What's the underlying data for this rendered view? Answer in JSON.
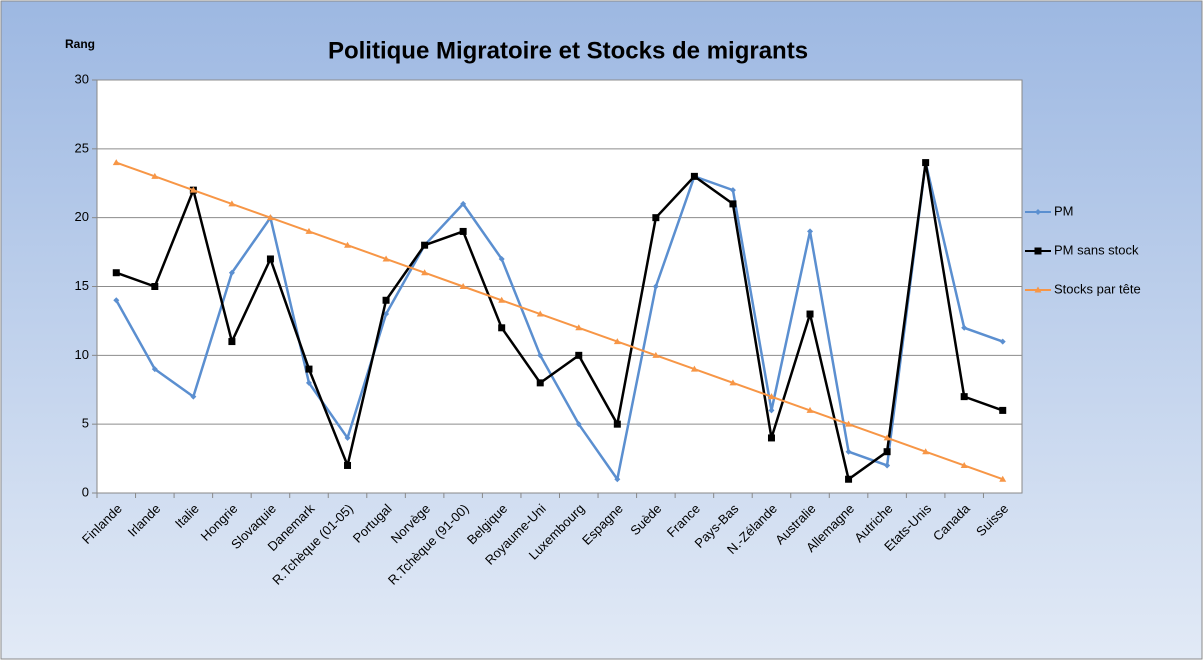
{
  "chart_data": {
    "type": "line",
    "title": "Politique Migratoire et Stocks de migrants",
    "y_label": "Rang",
    "categories": [
      "Finlande",
      "Irlande",
      "Italie",
      "Hongrie",
      "Slovaquie",
      "Danemark",
      "R.Tchèque (01-05)",
      "Portugal",
      "Norvège",
      "R.Tchèque (91-00)",
      "Belgique",
      "Royaume-Uni",
      "Luxembourg",
      "Espagne",
      "Suède",
      "France",
      "Pays-Bas",
      "N.-Zélande",
      "Australie",
      "Allemagne",
      "Autriche",
      "Etats-Unis",
      "Canada",
      "Suisse"
    ],
    "series": [
      {
        "name": "PM",
        "color": "#5b8fd0",
        "marker": "diamond",
        "values": [
          14,
          9,
          7,
          16,
          20,
          8,
          4,
          13,
          18,
          21,
          17,
          10,
          5,
          1,
          15,
          23,
          22,
          6,
          19,
          3,
          2,
          24,
          12,
          11
        ]
      },
      {
        "name": "PM sans stock",
        "color": "#000000",
        "marker": "square",
        "values": [
          16,
          15,
          22,
          11,
          17,
          9,
          2,
          14,
          18,
          19,
          12,
          8,
          10,
          5,
          20,
          23,
          21,
          4,
          13,
          1,
          3,
          24,
          7,
          6
        ]
      },
      {
        "name": "Stocks par tête",
        "color": "#f79646",
        "marker": "triangle",
        "values": [
          24,
          23,
          22,
          21,
          20,
          19,
          18,
          17,
          16,
          15,
          14,
          13,
          12,
          11,
          10,
          9,
          8,
          7,
          6,
          5,
          4,
          3,
          2,
          1
        ]
      }
    ],
    "ylim": [
      0,
      30
    ],
    "yticks": [
      0,
      5,
      10,
      15,
      20,
      25,
      30
    ],
    "grid": true,
    "legend": "right"
  }
}
